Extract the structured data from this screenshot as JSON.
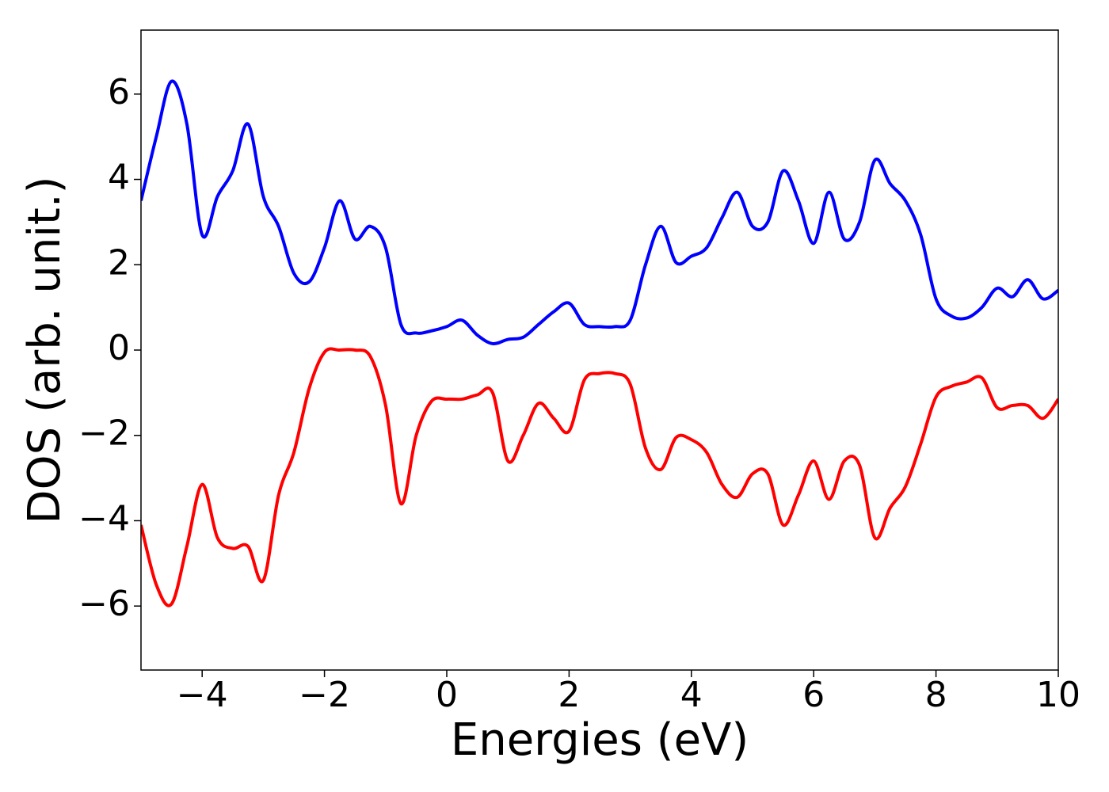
{
  "chart_data": {
    "type": "line",
    "xlabel": "Energies (eV)",
    "ylabel": "DOS (arb. unit.)",
    "x": [
      -5,
      -4.75,
      -4.5,
      -4.25,
      -4,
      -3.75,
      -3.5,
      -3.25,
      -3,
      -2.75,
      -2.5,
      -2.25,
      -2,
      -1.75,
      -1.5,
      -1.25,
      -1,
      -0.75,
      -0.5,
      -0.25,
      0,
      0.25,
      0.5,
      0.75,
      1,
      1.25,
      1.5,
      1.75,
      2,
      2.25,
      2.5,
      2.75,
      3,
      3.25,
      3.5,
      3.75,
      4,
      4.25,
      4.5,
      4.75,
      5,
      5.25,
      5.5,
      5.75,
      6,
      6.25,
      6.5,
      6.75,
      7,
      7.25,
      7.5,
      7.75,
      8,
      8.25,
      8.5,
      8.75,
      9,
      9.25,
      9.5,
      9.75,
      10
    ],
    "series": [
      {
        "color": "#0000ff",
        "values": [
          3.5,
          5.0,
          6.3,
          5.3,
          2.7,
          3.6,
          4.2,
          5.3,
          3.6,
          2.9,
          1.8,
          1.6,
          2.4,
          3.5,
          2.6,
          2.9,
          2.4,
          0.6,
          0.4,
          0.45,
          0.55,
          0.7,
          0.35,
          0.15,
          0.25,
          0.3,
          0.6,
          0.9,
          1.1,
          0.6,
          0.55,
          0.55,
          0.7,
          2.0,
          2.9,
          2.05,
          2.2,
          2.4,
          3.1,
          3.7,
          2.9,
          3.0,
          4.2,
          3.5,
          2.5,
          3.7,
          2.6,
          3.0,
          4.45,
          3.9,
          3.5,
          2.7,
          1.2,
          0.8,
          0.75,
          1.0,
          1.45,
          1.25,
          1.65,
          1.2,
          1.4
        ]
      },
      {
        "color": "#ff0000",
        "values": [
          -4.1,
          -5.5,
          -5.95,
          -4.6,
          -3.15,
          -4.4,
          -4.65,
          -4.6,
          -5.4,
          -3.4,
          -2.4,
          -0.9,
          -0.05,
          0,
          0,
          -0.15,
          -1.3,
          -3.6,
          -2.0,
          -1.2,
          -1.15,
          -1.15,
          -1.05,
          -1.0,
          -2.6,
          -2.0,
          -1.25,
          -1.6,
          -1.9,
          -0.7,
          -0.55,
          -0.55,
          -0.8,
          -2.3,
          -2.8,
          -2.05,
          -2.1,
          -2.4,
          -3.15,
          -3.45,
          -2.9,
          -2.9,
          -4.1,
          -3.4,
          -2.6,
          -3.5,
          -2.6,
          -2.7,
          -4.4,
          -3.7,
          -3.2,
          -2.2,
          -1.1,
          -0.85,
          -0.75,
          -0.65,
          -1.35,
          -1.3,
          -1.3,
          -1.6,
          -1.15
        ]
      }
    ],
    "xlim": [
      -5,
      10
    ],
    "xticks": [
      {
        "value": -4,
        "label": "−4"
      },
      {
        "value": -2,
        "label": "−2"
      },
      0,
      2,
      4,
      6,
      8,
      10
    ],
    "ylim": [
      -7.5,
      7.5
    ],
    "yticks": [
      {
        "value": -6,
        "label": "−6"
      },
      {
        "value": -4,
        "label": "−4"
      },
      {
        "value": -2,
        "label": "−2"
      },
      0,
      2,
      4,
      6
    ]
  }
}
